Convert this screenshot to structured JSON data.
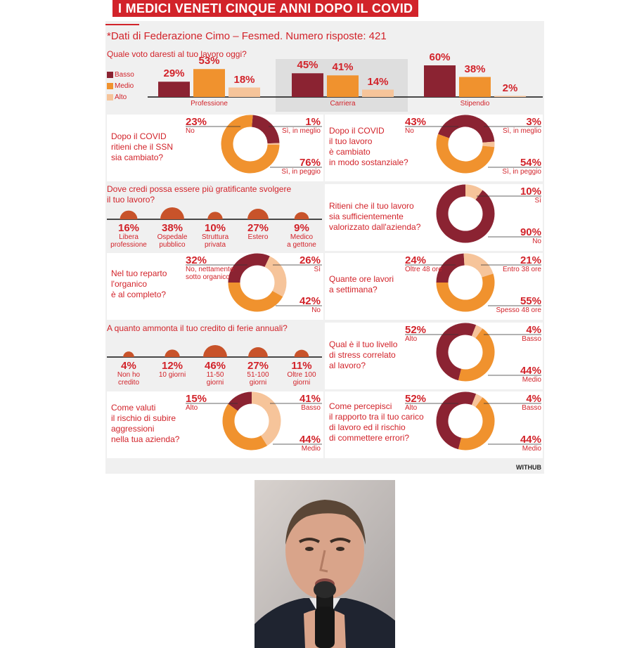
{
  "title": "I MEDICI VENETI CINQUE ANNI DOPO IL COVID",
  "source": "*Dati di Federazione Cimo – Fesmed. Numero risposte: 421",
  "brand": "WITHUB",
  "colors": {
    "basso": "#8b2332",
    "medio": "#f0922e",
    "alto": "#f6c49a",
    "red": "#d2232a",
    "ring_dark": "#8b2332",
    "ring_orange": "#f0922e",
    "ring_light": "#f6c49a",
    "bubble": "#c8532a"
  },
  "photo": {
    "description_icon": "man-speaking-microphone-photo"
  },
  "chart_data": [
    {
      "type": "bar",
      "title": "Quale voto daresti al tuo lavoro oggi?",
      "categories": [
        "Professione",
        "Carriera",
        "Stipendio"
      ],
      "legend": [
        "Basso",
        "Medio",
        "Alto"
      ],
      "series": [
        {
          "name": "Basso",
          "values": [
            29,
            45,
            60
          ],
          "labels": [
            "29%",
            "45%",
            "60%"
          ]
        },
        {
          "name": "Medio",
          "values": [
            53,
            41,
            38
          ],
          "labels": [
            "53%",
            "41%",
            "38%"
          ]
        },
        {
          "name": "Alto",
          "values": [
            18,
            14,
            2
          ],
          "labels": [
            "18%",
            "14%",
            "2%"
          ]
        }
      ],
      "ylim": [
        0,
        60
      ]
    },
    {
      "type": "pie",
      "title": "Dopo il COVID\nritieni che il SSN\nsia cambiato?",
      "slices": [
        {
          "label": "No",
          "value": 23,
          "pct": "23%"
        },
        {
          "label": "Sì, in meglio",
          "value": 1,
          "pct": "1%"
        },
        {
          "label": "Sì, in peggio",
          "value": 76,
          "pct": "76%"
        }
      ]
    },
    {
      "type": "pie",
      "title": "Dopo il COVID\nil tuo lavoro\nè cambiato\nin modo sostanziale?",
      "slices": [
        {
          "label": "No",
          "value": 43,
          "pct": "43%"
        },
        {
          "label": "Sì, in meglio",
          "value": 3,
          "pct": "3%"
        },
        {
          "label": "Sì, in peggio",
          "value": 54,
          "pct": "54%"
        }
      ]
    },
    {
      "type": "bar",
      "title": "Dove credi possa essere più gratificante svolgere\nil tuo lavoro?",
      "categories": [
        "Libera\nprofessione",
        "Ospedale\npubblico",
        "Struttura\nprivata",
        "Estero",
        "Medico\na gettone"
      ],
      "values": [
        16,
        38,
        10,
        27,
        9
      ],
      "labels": [
        "16%",
        "38%",
        "10%",
        "27%",
        "9%"
      ]
    },
    {
      "type": "pie",
      "title": "Ritieni che il tuo lavoro\nsia sufficientemente\nvalorizzato dall'azienda?",
      "slices": [
        {
          "label": "Sì",
          "value": 10,
          "pct": "10%"
        },
        {
          "label": "No",
          "value": 90,
          "pct": "90%"
        }
      ]
    },
    {
      "type": "pie",
      "title": "Nel tuo reparto\nl'organico\nè al completo?",
      "slices": [
        {
          "label": "No, nettamente\nsotto organico",
          "value": 32,
          "pct": "32%"
        },
        {
          "label": "Sì",
          "value": 26,
          "pct": "26%"
        },
        {
          "label": "No",
          "value": 42,
          "pct": "42%"
        }
      ]
    },
    {
      "type": "pie",
      "title": "Quante ore lavori\na settimana?",
      "slices": [
        {
          "label": "Oltre 48 ore",
          "value": 24,
          "pct": "24%"
        },
        {
          "label": "Entro 38 ore",
          "value": 21,
          "pct": "21%"
        },
        {
          "label": "Spesso 48 ore",
          "value": 55,
          "pct": "55%"
        }
      ]
    },
    {
      "type": "bar",
      "title": "A quanto ammonta il tuo credito di ferie annuali?",
      "categories": [
        "Non ho\ncredito",
        "10 giorni",
        "11-50\ngiorni",
        "51-100\ngiorni",
        "Oltre 100\ngiorni"
      ],
      "values": [
        4,
        12,
        46,
        27,
        11
      ],
      "labels": [
        "4%",
        "12%",
        "46%",
        "27%",
        "11%"
      ]
    },
    {
      "type": "pie",
      "title": "Qual è il tuo livello\ndi stress correlato\nal lavoro?",
      "slices": [
        {
          "label": "Alto",
          "value": 52,
          "pct": "52%"
        },
        {
          "label": "Basso",
          "value": 4,
          "pct": "4%"
        },
        {
          "label": "Medio",
          "value": 44,
          "pct": "44%"
        }
      ]
    },
    {
      "type": "pie",
      "title": "Come valuti\nil rischio di subire\naggressioni\nnella tua azienda?",
      "slices": [
        {
          "label": "Alto",
          "value": 15,
          "pct": "15%"
        },
        {
          "label": "Basso",
          "value": 41,
          "pct": "41%"
        },
        {
          "label": "Medio",
          "value": 44,
          "pct": "44%"
        }
      ]
    },
    {
      "type": "pie",
      "title": "Come percepisci\nil rapporto tra il tuo carico\ndi lavoro ed il rischio\ndi commettere errori?",
      "slices": [
        {
          "label": "Alto",
          "value": 52,
          "pct": "52%"
        },
        {
          "label": "Basso",
          "value": 4,
          "pct": "4%"
        },
        {
          "label": "Medio",
          "value": 44,
          "pct": "44%"
        }
      ]
    }
  ]
}
